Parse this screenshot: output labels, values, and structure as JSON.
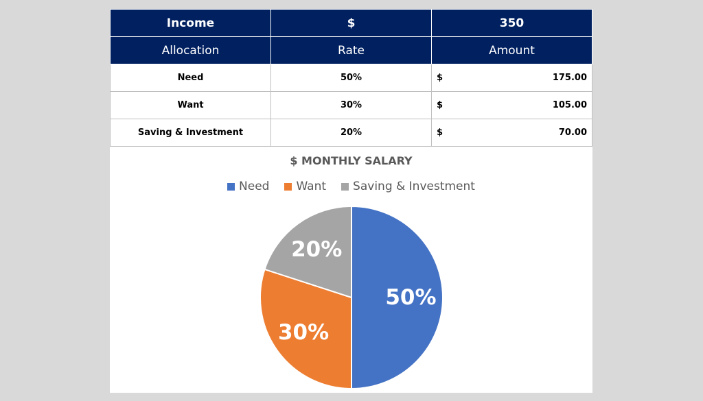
{
  "table": {
    "income_label": "Income",
    "income_currency": "$",
    "income_value": "350",
    "col_allocation": "Allocation",
    "col_rate": "Rate",
    "col_amount": "Amount",
    "rows": [
      {
        "allocation": "Need",
        "rate": "50%",
        "currency": "$",
        "amount": "175.00"
      },
      {
        "allocation": "Want",
        "rate": "30%",
        "currency": "$",
        "amount": "105.00"
      },
      {
        "allocation": "Saving & Investment",
        "rate": "20%",
        "currency": "$",
        "amount": "70.00"
      }
    ]
  },
  "chart_data": {
    "type": "pie",
    "title": "$ MONTHLY SALARY",
    "legend_position": "top",
    "categories": [
      "Need",
      "Want",
      "Saving & Investment"
    ],
    "values": [
      50,
      30,
      20
    ],
    "labels": [
      "50%",
      "30%",
      "20%"
    ],
    "colors": [
      "#4472c4",
      "#ed7d31",
      "#a5a5a5"
    ]
  }
}
